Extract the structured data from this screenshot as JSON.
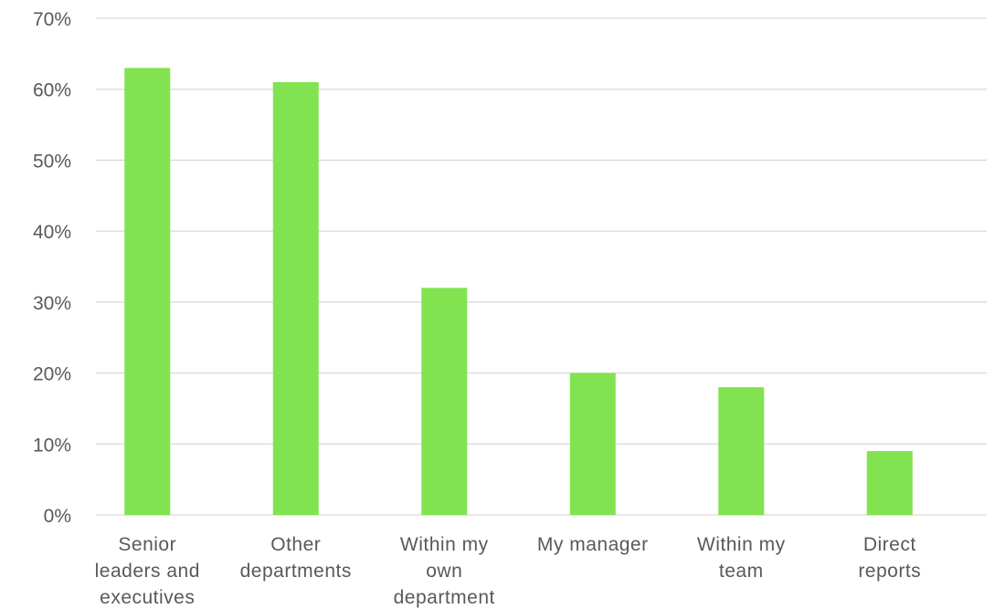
{
  "chart_data": {
    "type": "bar",
    "categories": [
      [
        "Senior",
        "leaders and",
        "executives"
      ],
      [
        "Other",
        "departments"
      ],
      [
        "Within my",
        "own",
        "department"
      ],
      [
        "My manager"
      ],
      [
        "Within my",
        "team"
      ],
      [
        "Direct",
        "reports"
      ]
    ],
    "values": [
      63,
      61,
      32,
      20,
      18,
      9
    ],
    "ylim": [
      0,
      70
    ],
    "yticks": [
      0,
      10,
      20,
      30,
      40,
      50,
      60,
      70
    ],
    "ytick_labels": [
      "0%",
      "10%",
      "20%",
      "30%",
      "40%",
      "50%",
      "60%",
      "70%"
    ],
    "grid": true,
    "legend": "none",
    "colors": {
      "bar": "#82e350",
      "grid": "#d9d9d9",
      "text": "#595959"
    }
  }
}
